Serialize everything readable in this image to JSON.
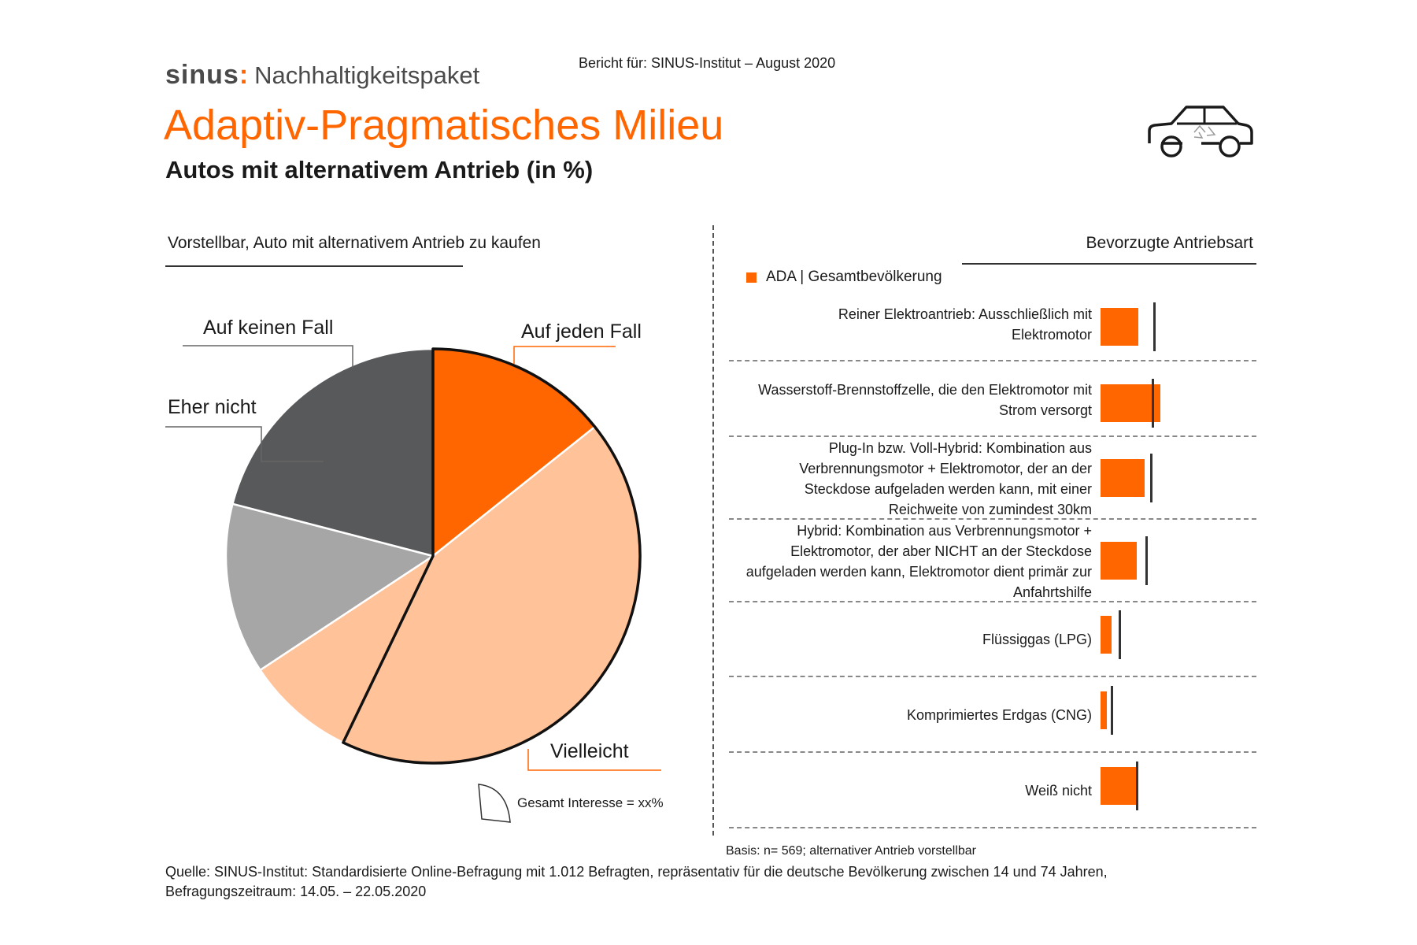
{
  "header": {
    "brand_logo": "sinus",
    "brand_colon": ":",
    "brand_product": "Nachhaltigkeitspaket",
    "report": "Bericht für: SINUS-Institut – August 2020",
    "title": "Adaptiv-Pragmatisches Milieu",
    "subtitle": "Autos mit alternativem Antrieb (in %)",
    "icon": "car-recycle-icon"
  },
  "colors": {
    "accent": "#ff6600",
    "light_orange": "#ffc299",
    "dark_gray": "#58595b",
    "light_gray": "#a6a6a6"
  },
  "chart_data": [
    {
      "type": "pie",
      "title": "Vorstellbar, Auto mit alternativem Antrieb zu kaufen",
      "slices": [
        {
          "label": "Auf jeden Fall",
          "value": 15,
          "color": "#ff6600"
        },
        {
          "label": "Vielleicht",
          "value": 45,
          "color": "#ffc299"
        },
        {
          "label": "",
          "value": 9,
          "color": "#ffc299"
        },
        {
          "label": "Eher nicht",
          "value": 14,
          "color": "#a6a6a6"
        },
        {
          "label": "Auf keinen Fall",
          "value": 22,
          "color": "#58595b"
        }
      ],
      "highlight_note": "Gesamt Interesse = xx%"
    },
    {
      "type": "bar",
      "orientation": "horizontal",
      "title": "Bevorzugte Antriebsart",
      "legend": "ADA | Gesamtbevölkerung",
      "categories": [
        "Reiner Elektroantrieb: Ausschließlich mit Elektromotor",
        "Wasserstoff-Brennstoffzelle, die den Elektromotor mit Strom versorgt",
        "Plug-In bzw. Voll-Hybrid: Kombination aus Verbrennungsmotor + Elektromotor, der an der Steckdose aufgeladen werden kann, mit einer Reichweite von zumindest 30km",
        "Hybrid: Kombination aus Verbrennungsmotor + Elektromotor, der aber NICHT an der Steckdose aufgeladen werden kann, Elektromotor dient primär zur Anfahrtshilfe",
        "Flüssiggas (LPG)",
        "Komprimiertes Erdgas (CNG)",
        "Weiß nicht"
      ],
      "series": [
        {
          "name": "ADA",
          "values": [
            24,
            38,
            28,
            23,
            7,
            4,
            24
          ]
        },
        {
          "name": "Gesamtbevölkerung",
          "values": [
            34,
            33,
            32,
            29,
            12,
            7,
            23
          ]
        }
      ],
      "basis": "Basis: n= 569; alternativer Antrieb vorstellbar"
    }
  ],
  "footer": {
    "source_line1": "Quelle: SINUS-Institut: Standardisierte Online-Befragung mit 1.012 Befragten, repräsentativ für die deutsche Bevölkerung zwischen 14 und 74 Jahren,",
    "source_line2": "Befragungszeitraum: 14.05. – 22.05.2020"
  }
}
